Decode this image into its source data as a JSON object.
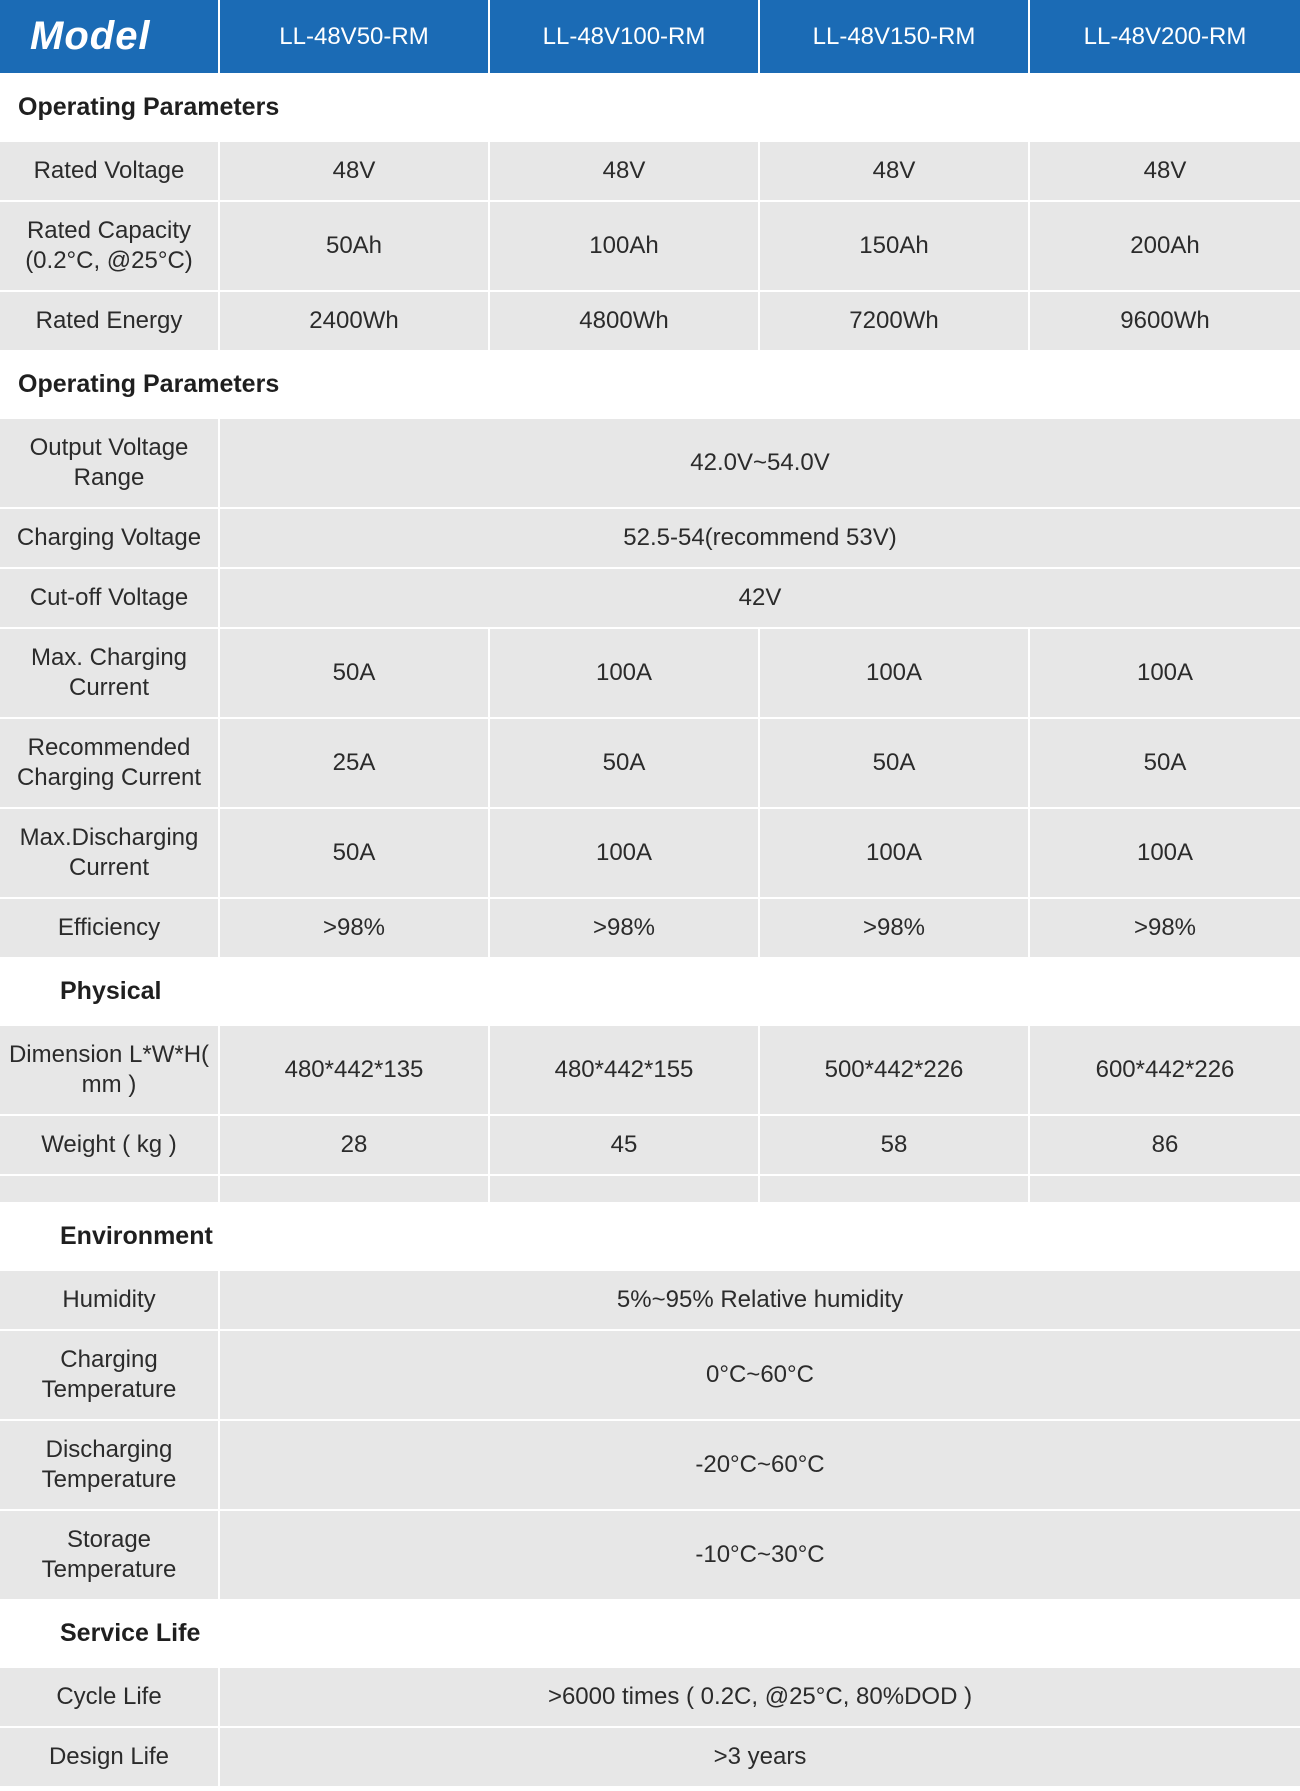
{
  "header": {
    "title": "Model",
    "models": [
      "LL-48V50-RM",
      "LL-48V100-RM",
      "LL-48V150-RM",
      "LL-48V200-RM"
    ]
  },
  "colors": {
    "header_bg": "#1b6bb5",
    "header_fg": "#ffffff",
    "row_bg": "#e7e7e7",
    "row_fg": "#2b2b2b",
    "divider": "#ffffff"
  },
  "sections": [
    {
      "title": "Operating Parameters",
      "indent": false,
      "rows": [
        {
          "label": "Rated Voltage",
          "values": [
            "48V",
            "48V",
            "48V",
            "48V"
          ]
        },
        {
          "label": "Rated Capacity  (0.2°C, @25°C)",
          "values": [
            "50Ah",
            "100Ah",
            "150Ah",
            "200Ah"
          ]
        },
        {
          "label": "Rated Energy",
          "values": [
            "2400Wh",
            "4800Wh",
            "7200Wh",
            "9600Wh"
          ]
        }
      ]
    },
    {
      "title": "Operating Parameters",
      "indent": false,
      "rows": [
        {
          "label": "Output Voltage Range",
          "span": "42.0V~54.0V"
        },
        {
          "label": "Charging Voltage",
          "span": "52.5-54(recommend 53V)"
        },
        {
          "label": "Cut-off Voltage",
          "span": "42V"
        },
        {
          "label": "Max. Charging Current",
          "values": [
            "50A",
            "100A",
            "100A",
            "100A"
          ]
        },
        {
          "label": "Recommended Charging Current",
          "values": [
            "25A",
            "50A",
            "50A",
            "50A"
          ]
        },
        {
          "label": "Max.Discharging Current",
          "values": [
            "50A",
            "100A",
            "100A",
            "100A"
          ]
        },
        {
          "label": "Efficiency",
          "values": [
            ">98%",
            ">98%",
            ">98%",
            ">98%"
          ]
        }
      ]
    },
    {
      "title": "Physical",
      "indent": true,
      "rows": [
        {
          "label": "Dimension L*W*H( mm )",
          "values": [
            "480*442*135",
            "480*442*155",
            "500*442*226",
            "600*442*226"
          ]
        },
        {
          "label": "Weight ( kg )",
          "values": [
            "28",
            "45",
            "58",
            "86"
          ]
        }
      ],
      "trailing_gap": true
    },
    {
      "title": "Environment",
      "indent": true,
      "rows": [
        {
          "label": "Humidity",
          "span": "5%~95% Relative humidity"
        },
        {
          "label": "Charging Temperature",
          "span": "0°C~60°C"
        },
        {
          "label": "Discharging Temperature",
          "span": "-20°C~60°C"
        },
        {
          "label": "Storage Temperature",
          "span": "-10°C~30°C"
        }
      ]
    },
    {
      "title": "Service Life",
      "indent": true,
      "rows": [
        {
          "label": "Cycle Life",
          "span": ">6000 times ( 0.2C, @25°C, 80%DOD )"
        },
        {
          "label": "Design Life",
          "span": ">3 years"
        }
      ]
    }
  ]
}
